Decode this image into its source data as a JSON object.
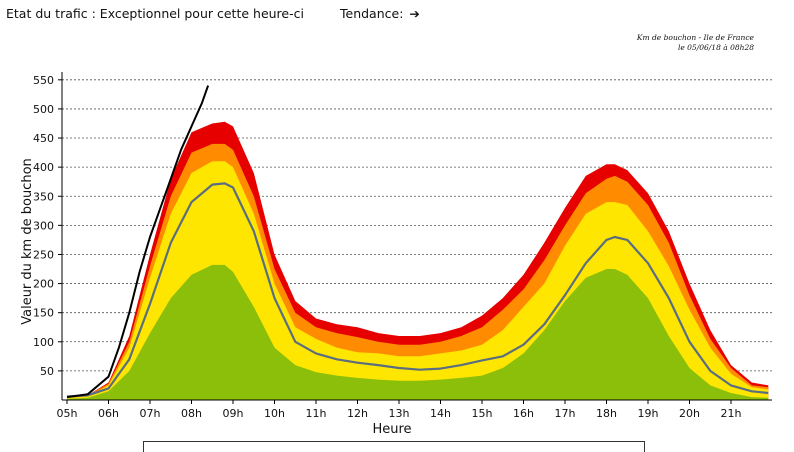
{
  "header": {
    "status_label": "Etat du trafic",
    "status_value": "Exceptionnel pour cette heure-ci",
    "trend_label": "Tendance:",
    "trend_icon": "arrow-right-icon"
  },
  "caption": {
    "line1": "Km de bouchon - Ile de France",
    "line2": "le 05/06/18 à 08h28"
  },
  "chart_data": {
    "type": "area",
    "xlabel": "Heure",
    "ylabel": "Valeur du  km de bouchon",
    "xlim": [
      5,
      22
    ],
    "ylim": [
      0,
      560
    ],
    "x_tick_labels": [
      "05h",
      "06h",
      "07h",
      "08h",
      "09h",
      "10h",
      "11h",
      "12h",
      "13h",
      "14h",
      "15h",
      "16h",
      "17h",
      "18h",
      "19h",
      "20h",
      "21h"
    ],
    "y_ticks": [
      50,
      100,
      150,
      200,
      250,
      300,
      350,
      400,
      450,
      500,
      550
    ],
    "grid": "horizontal dashed",
    "x": [
      5.0,
      5.5,
      6.0,
      6.5,
      7.0,
      7.5,
      8.0,
      8.5,
      8.8,
      9.0,
      9.5,
      10.0,
      10.5,
      11.0,
      11.5,
      12.0,
      12.5,
      13.0,
      13.5,
      14.0,
      14.5,
      15.0,
      15.5,
      16.0,
      16.5,
      17.0,
      17.5,
      18.0,
      18.2,
      18.5,
      19.0,
      19.5,
      20.0,
      20.5,
      21.0,
      21.5,
      21.9
    ],
    "bands": [
      {
        "color": "#e60000",
        "values": [
          4,
          8,
          30,
          110,
          250,
          380,
          460,
          475,
          478,
          470,
          390,
          250,
          170,
          140,
          130,
          125,
          115,
          110,
          110,
          115,
          125,
          145,
          175,
          215,
          270,
          330,
          385,
          405,
          405,
          395,
          355,
          290,
          200,
          120,
          60,
          30,
          25
        ]
      },
      {
        "color": "#ff8c00",
        "values": [
          4,
          8,
          28,
          100,
          230,
          350,
          425,
          440,
          440,
          430,
          350,
          225,
          150,
          125,
          115,
          108,
          100,
          95,
          95,
          100,
          110,
          125,
          155,
          190,
          240,
          300,
          355,
          380,
          385,
          375,
          335,
          270,
          180,
          105,
          55,
          25,
          22
        ]
      },
      {
        "color": "#ffe600",
        "values": [
          4,
          6,
          25,
          90,
          210,
          320,
          390,
          410,
          410,
          400,
          320,
          200,
          125,
          105,
          90,
          82,
          80,
          75,
          75,
          80,
          85,
          95,
          120,
          160,
          200,
          265,
          320,
          340,
          340,
          335,
          290,
          230,
          155,
          90,
          45,
          22,
          18
        ]
      },
      {
        "color": "#8cbf0a",
        "values": [
          2,
          4,
          15,
          50,
          115,
          175,
          215,
          232,
          232,
          220,
          160,
          90,
          60,
          48,
          42,
          38,
          35,
          33,
          33,
          35,
          38,
          42,
          55,
          80,
          120,
          170,
          210,
          225,
          225,
          215,
          175,
          110,
          55,
          25,
          12,
          5,
          4
        ]
      }
    ],
    "series": [
      {
        "color": "#5a6e80",
        "x": [
          5.0,
          5.5,
          6.0,
          6.5,
          7.0,
          7.5,
          8.0,
          8.5,
          8.8,
          9.0,
          9.5,
          10.0,
          10.5,
          11.0,
          11.5,
          12.0,
          12.5,
          13.0,
          13.5,
          14.0,
          14.5,
          15.0,
          15.5,
          16.0,
          16.5,
          17.0,
          17.5,
          18.0,
          18.2,
          18.5,
          19.0,
          19.5,
          20.0,
          20.5,
          21.0,
          21.5,
          21.9
        ],
        "values": [
          6,
          8,
          20,
          70,
          165,
          270,
          340,
          370,
          372,
          365,
          290,
          175,
          100,
          80,
          70,
          64,
          60,
          55,
          52,
          54,
          60,
          68,
          75,
          95,
          130,
          180,
          235,
          275,
          280,
          275,
          235,
          175,
          100,
          50,
          25,
          15,
          12
        ]
      },
      {
        "color": "#000000",
        "x": [
          5.0,
          5.5,
          6.0,
          6.25,
          6.5,
          6.75,
          7.0,
          7.25,
          7.5,
          7.75,
          8.0,
          8.25,
          8.4
        ],
        "values": [
          5,
          10,
          40,
          90,
          150,
          220,
          280,
          330,
          380,
          430,
          470,
          510,
          540
        ]
      }
    ]
  }
}
